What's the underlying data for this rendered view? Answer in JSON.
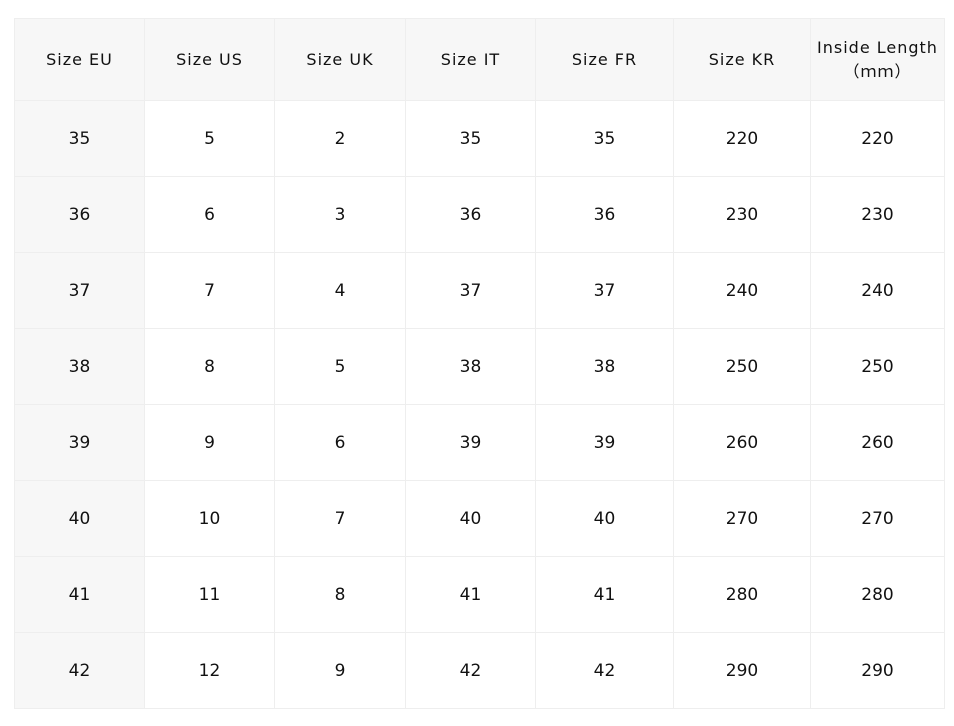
{
  "table": {
    "header": [
      "Size EU",
      "Size US",
      "Size UK",
      "Size IT",
      "Size FR",
      "Size KR",
      "Inside Length\n（ｍｍ）"
    ],
    "rows": [
      [
        "35",
        "5",
        "2",
        "35",
        "35",
        "220",
        "220"
      ],
      [
        "36",
        "6",
        "3",
        "36",
        "36",
        "230",
        "230"
      ],
      [
        "37",
        "7",
        "4",
        "37",
        "37",
        "240",
        "240"
      ],
      [
        "38",
        "8",
        "5",
        "38",
        "38",
        "250",
        "250"
      ],
      [
        "39",
        "9",
        "6",
        "39",
        "39",
        "260",
        "260"
      ],
      [
        "40",
        "10",
        "7",
        "40",
        "40",
        "270",
        "270"
      ],
      [
        "41",
        "11",
        "8",
        "41",
        "41",
        "280",
        "280"
      ],
      [
        "42",
        "12",
        "9",
        "42",
        "42",
        "290",
        "290"
      ]
    ]
  }
}
